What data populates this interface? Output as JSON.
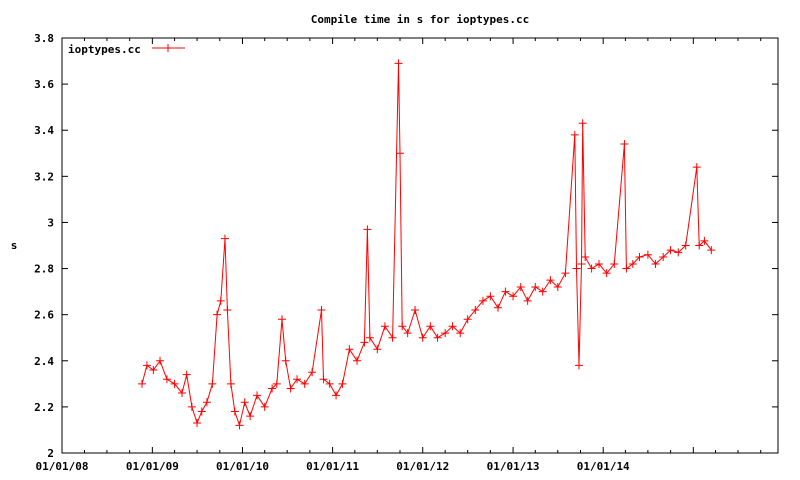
{
  "chart_data": {
    "type": "line",
    "title": "Compile time in s for ioptypes.cc",
    "xlabel": "",
    "ylabel": "s",
    "x_type": "date",
    "xlim": [
      "2008-01-01",
      "2015-12-10"
    ],
    "ylim": [
      2,
      3.8
    ],
    "x_ticks": [
      {
        "date": "2008-01-01",
        "label": "01/01/08"
      },
      {
        "date": "2009-01-01",
        "label": "01/01/09"
      },
      {
        "date": "2010-01-01",
        "label": "01/01/10"
      },
      {
        "date": "2011-01-01",
        "label": "01/01/11"
      },
      {
        "date": "2012-01-01",
        "label": "01/01/12"
      },
      {
        "date": "2013-01-01",
        "label": "01/01/13"
      },
      {
        "date": "2014-01-01",
        "label": "01/01/14"
      },
      {
        "date": "2015-01-01",
        "label": ""
      }
    ],
    "y_ticks": [
      "2",
      "2.2",
      "2.4",
      "2.6",
      "2.8",
      "3",
      "3.2",
      "3.4",
      "3.6",
      "3.8"
    ],
    "grid": false,
    "legend_position": "top-left",
    "marker": "plus",
    "series": [
      {
        "name": "ioptypes.cc",
        "color": "#ff0000",
        "points": [
          [
            "2008-11-20",
            2.3
          ],
          [
            "2008-12-10",
            2.38
          ],
          [
            "2009-01-05",
            2.36
          ],
          [
            "2009-02-01",
            2.4
          ],
          [
            "2009-03-01",
            2.32
          ],
          [
            "2009-04-01",
            2.3
          ],
          [
            "2009-05-01",
            2.26
          ],
          [
            "2009-05-20",
            2.34
          ],
          [
            "2009-06-10",
            2.2
          ],
          [
            "2009-07-01",
            2.13
          ],
          [
            "2009-07-20",
            2.18
          ],
          [
            "2009-08-10",
            2.22
          ],
          [
            "2009-09-01",
            2.3
          ],
          [
            "2009-09-20",
            2.6
          ],
          [
            "2009-10-05",
            2.66
          ],
          [
            "2009-10-22",
            2.93
          ],
          [
            "2009-11-01",
            2.62
          ],
          [
            "2009-11-15",
            2.3
          ],
          [
            "2009-12-01",
            2.18
          ],
          [
            "2009-12-20",
            2.12
          ],
          [
            "2010-01-10",
            2.22
          ],
          [
            "2010-02-01",
            2.16
          ],
          [
            "2010-03-01",
            2.25
          ],
          [
            "2010-04-01",
            2.2
          ],
          [
            "2010-05-01",
            2.28
          ],
          [
            "2010-05-20",
            2.3
          ],
          [
            "2010-06-10",
            2.58
          ],
          [
            "2010-06-25",
            2.4
          ],
          [
            "2010-07-15",
            2.28
          ],
          [
            "2010-08-10",
            2.32
          ],
          [
            "2010-09-10",
            2.3
          ],
          [
            "2010-10-10",
            2.35
          ],
          [
            "2010-11-17",
            2.62
          ],
          [
            "2010-11-25",
            2.32
          ],
          [
            "2010-12-20",
            2.3
          ],
          [
            "2011-01-15",
            2.25
          ],
          [
            "2011-02-10",
            2.3
          ],
          [
            "2011-03-10",
            2.45
          ],
          [
            "2011-04-10",
            2.4
          ],
          [
            "2011-05-10",
            2.48
          ],
          [
            "2011-05-22",
            2.97
          ],
          [
            "2011-06-01",
            2.5
          ],
          [
            "2011-07-01",
            2.45
          ],
          [
            "2011-08-01",
            2.55
          ],
          [
            "2011-09-01",
            2.5
          ],
          [
            "2011-09-25",
            3.69
          ],
          [
            "2011-10-01",
            3.3
          ],
          [
            "2011-10-10",
            2.55
          ],
          [
            "2011-11-01",
            2.52
          ],
          [
            "2011-12-01",
            2.62
          ],
          [
            "2012-01-01",
            2.5
          ],
          [
            "2012-02-01",
            2.55
          ],
          [
            "2012-03-01",
            2.5
          ],
          [
            "2012-04-01",
            2.52
          ],
          [
            "2012-05-01",
            2.55
          ],
          [
            "2012-06-01",
            2.52
          ],
          [
            "2012-07-01",
            2.58
          ],
          [
            "2012-08-01",
            2.62
          ],
          [
            "2012-09-01",
            2.66
          ],
          [
            "2012-10-01",
            2.68
          ],
          [
            "2012-11-01",
            2.63
          ],
          [
            "2012-12-01",
            2.7
          ],
          [
            "2013-01-01",
            2.68
          ],
          [
            "2013-02-01",
            2.72
          ],
          [
            "2013-03-01",
            2.66
          ],
          [
            "2013-04-01",
            2.72
          ],
          [
            "2013-05-01",
            2.7
          ],
          [
            "2013-06-01",
            2.75
          ],
          [
            "2013-07-01",
            2.72
          ],
          [
            "2013-08-01",
            2.78
          ],
          [
            "2013-09-08",
            3.38
          ],
          [
            "2013-09-15",
            2.8
          ],
          [
            "2013-09-25",
            2.38
          ],
          [
            "2013-10-05",
            2.82
          ],
          [
            "2013-10-10",
            3.43
          ],
          [
            "2013-10-20",
            2.85
          ],
          [
            "2013-11-15",
            2.8
          ],
          [
            "2013-12-15",
            2.82
          ],
          [
            "2014-01-15",
            2.78
          ],
          [
            "2014-02-15",
            2.82
          ],
          [
            "2014-03-28",
            3.34
          ],
          [
            "2014-04-05",
            2.8
          ],
          [
            "2014-05-01",
            2.82
          ],
          [
            "2014-05-28",
            2.85
          ],
          [
            "2014-07-01",
            2.86
          ],
          [
            "2014-08-01",
            2.82
          ],
          [
            "2014-09-01",
            2.85
          ],
          [
            "2014-10-01",
            2.88
          ],
          [
            "2014-11-01",
            2.87
          ],
          [
            "2014-12-01",
            2.9
          ],
          [
            "2015-01-15",
            3.24
          ],
          [
            "2015-01-25",
            2.9
          ],
          [
            "2015-02-15",
            2.92
          ],
          [
            "2015-03-15",
            2.88
          ]
        ]
      }
    ]
  }
}
